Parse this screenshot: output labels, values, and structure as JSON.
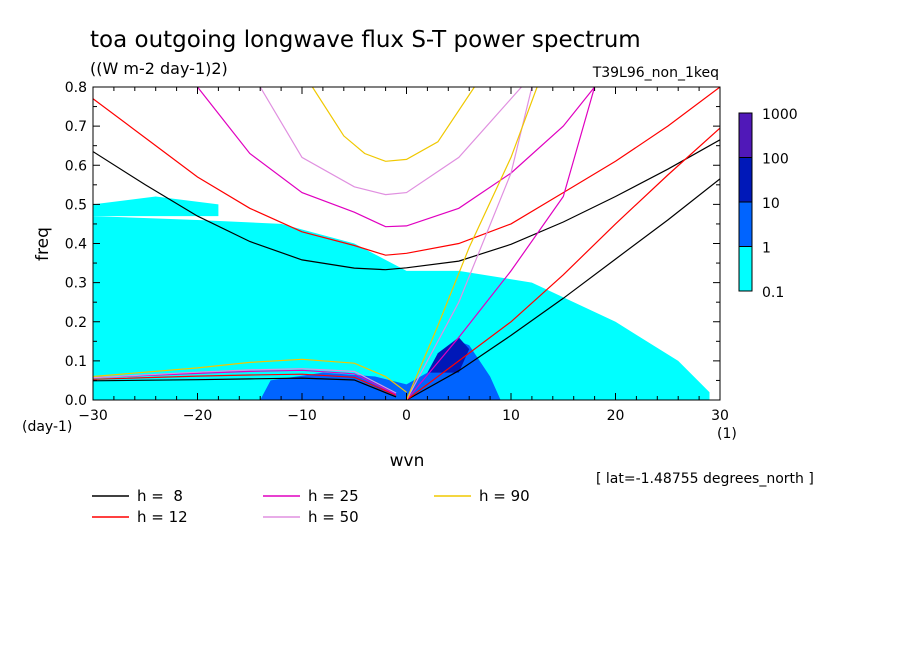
{
  "header": {
    "title": "toa outgoing longwave flux S-T power spectrum",
    "units": "((W m-2 day-1)2)",
    "run_label": "T39L96_non_1keq",
    "y_unit_label": "(day-1)",
    "x_unit_label": "(1)",
    "lat_label": "[ lat=-1.48755 degrees_north ]"
  },
  "legend": {
    "entries": [
      {
        "label": "h =  8",
        "color": "#000000"
      },
      {
        "label": "h = 12",
        "color": "#ff0000"
      },
      {
        "label": "h = 25",
        "color": "#e000c0"
      },
      {
        "label": "h = 50",
        "color": "#e090e0"
      },
      {
        "label": "h = 90",
        "color": "#f0c800"
      }
    ]
  },
  "colorbar": {
    "labels": [
      "1000",
      "100",
      "10",
      "1",
      "0.1"
    ],
    "colors": [
      "#5018b8",
      "#0018b8",
      "#0064ff",
      "#00ffff"
    ]
  },
  "chart_data": {
    "type": "heatmap",
    "title": "toa outgoing longwave flux S-T power spectrum",
    "subtitle": "((W m-2 day-1)2)",
    "xlabel": "wvn",
    "ylabel": "freq",
    "xlim": [
      -30,
      30
    ],
    "ylim": [
      0,
      0.8
    ],
    "x_ticks": [
      "-30",
      "-20",
      "-10",
      "0",
      "10",
      "20",
      "30"
    ],
    "y_ticks": [
      "0.0",
      "0.1",
      "0.2",
      "0.3",
      "0.4",
      "0.5",
      "0.6",
      "0.7",
      "0.8"
    ],
    "colorbar_levels": [
      0.1,
      1,
      10,
      100,
      1000
    ],
    "shaded_regions": [
      {
        "level": 0.1,
        "color": "#00ffff",
        "polygon": [
          [
            -30,
            0
          ],
          [
            -30,
            0.47
          ],
          [
            -20,
            0.46
          ],
          [
            -12,
            0.45
          ],
          [
            -5,
            0.4
          ],
          [
            0,
            0.33
          ],
          [
            5,
            0.33
          ],
          [
            12,
            0.3
          ],
          [
            20,
            0.2
          ],
          [
            26,
            0.1
          ],
          [
            29,
            0.02
          ],
          [
            29,
            0
          ]
        ]
      },
      {
        "level": 0.1,
        "color": "#00ffff",
        "polygon": [
          [
            -30,
            0.5
          ],
          [
            -24,
            0.52
          ],
          [
            -18,
            0.5
          ],
          [
            -18,
            0.47
          ],
          [
            -30,
            0.47
          ]
        ]
      },
      {
        "level": 1,
        "color": "#0064ff",
        "polygon": [
          [
            -14,
            0
          ],
          [
            -13,
            0.05
          ],
          [
            -8,
            0.07
          ],
          [
            -3,
            0.06
          ],
          [
            0,
            0.04
          ],
          [
            2,
            0.07
          ],
          [
            4,
            0.12
          ],
          [
            5,
            0.15
          ],
          [
            6,
            0.14
          ],
          [
            8,
            0.06
          ],
          [
            9,
            0
          ],
          [
            0,
            0
          ]
        ]
      },
      {
        "level": 10,
        "color": "#0018b8",
        "polygon": [
          [
            2,
            0.07
          ],
          [
            3,
            0.12
          ],
          [
            5,
            0.16
          ],
          [
            6,
            0.13
          ],
          [
            5,
            0.07
          ]
        ]
      }
    ],
    "series": [
      {
        "name": "h = 8",
        "color": "#000000",
        "lines": [
          {
            "x": [
              -30,
              -25,
              -20,
              -15,
              -10,
              -5,
              -2,
              0,
              5,
              10,
              15,
              20,
              25,
              30
            ],
            "y": [
              0.635,
              0.55,
              0.47,
              0.405,
              0.358,
              0.337,
              0.333,
              0.338,
              0.355,
              0.398,
              0.455,
              0.52,
              0.59,
              0.665
            ]
          },
          {
            "x": [
              -30,
              -20,
              -15,
              -10,
              -5,
              -1
            ],
            "y": [
              0.049,
              0.052,
              0.054,
              0.056,
              0.051,
              0.008
            ]
          },
          {
            "x": [
              0,
              5,
              10,
              15,
              20,
              25,
              30
            ],
            "y": [
              0,
              0.075,
              0.165,
              0.26,
              0.36,
              0.46,
              0.565
            ]
          }
        ]
      },
      {
        "name": "h = 12",
        "color": "#ff0000",
        "lines": [
          {
            "x": [
              -30,
              -25,
              -20,
              -15,
              -10,
              -5,
              -2,
              0,
              5,
              10,
              15,
              20,
              25,
              30
            ],
            "y": [
              0.77,
              0.67,
              0.57,
              0.49,
              0.43,
              0.395,
              0.37,
              0.375,
              0.4,
              0.45,
              0.53,
              0.61,
              0.7,
              0.8
            ]
          },
          {
            "x": [
              -30,
              -20,
              -15,
              -10,
              -5,
              -1
            ],
            "y": [
              0.053,
              0.061,
              0.064,
              0.066,
              0.058,
              0.012
            ]
          },
          {
            "x": [
              0,
              5,
              10,
              15,
              20,
              25,
              30
            ],
            "y": [
              0,
              0.1,
              0.2,
              0.32,
              0.45,
              0.575,
              0.695
            ]
          }
        ]
      },
      {
        "name": "h = 25",
        "color": "#e000c0",
        "lines": [
          {
            "x": [
              -20,
              -15,
              -10,
              -5,
              -2,
              0,
              5,
              10,
              15,
              18
            ],
            "y": [
              0.8,
              0.63,
              0.53,
              0.48,
              0.443,
              0.445,
              0.49,
              0.58,
              0.7,
              0.8
            ]
          },
          {
            "x": [
              -30,
              -20,
              -15,
              -10,
              -5,
              -1
            ],
            "y": [
              0.057,
              0.068,
              0.073,
              0.076,
              0.067,
              0.014
            ]
          },
          {
            "x": [
              0,
              5,
              10,
              15,
              18
            ],
            "y": [
              0,
              0.16,
              0.33,
              0.52,
              0.8
            ]
          }
        ]
      },
      {
        "name": "h = 50",
        "color": "#e090e0",
        "lines": [
          {
            "x": [
              -14,
              -10,
              -5,
              -2,
              0,
              5,
              11
            ],
            "y": [
              0.8,
              0.62,
              0.545,
              0.525,
              0.53,
              0.62,
              0.8
            ]
          },
          {
            "x": [
              -30,
              -20,
              -15,
              -10,
              -5,
              -1
            ],
            "y": [
              0.057,
              0.071,
              0.077,
              0.08,
              0.073,
              0.018
            ]
          },
          {
            "x": [
              0,
              5,
              10,
              12
            ],
            "y": [
              0,
              0.25,
              0.58,
              0.8
            ]
          }
        ]
      },
      {
        "name": "h = 90",
        "color": "#f0c800",
        "lines": [
          {
            "x": [
              -9,
              -6,
              -4,
              -2,
              0,
              3,
              6.5
            ],
            "y": [
              0.8,
              0.675,
              0.63,
              0.61,
              0.615,
              0.66,
              0.8
            ]
          },
          {
            "x": [
              -30,
              -20,
              -15,
              -10,
              -5,
              -2,
              0
            ],
            "y": [
              0.06,
              0.082,
              0.096,
              0.104,
              0.094,
              0.06,
              0.02
            ]
          },
          {
            "x": [
              0,
              3,
              6,
              10,
              12.5
            ],
            "y": [
              0,
              0.19,
              0.39,
              0.62,
              0.8
            ]
          }
        ]
      }
    ]
  }
}
